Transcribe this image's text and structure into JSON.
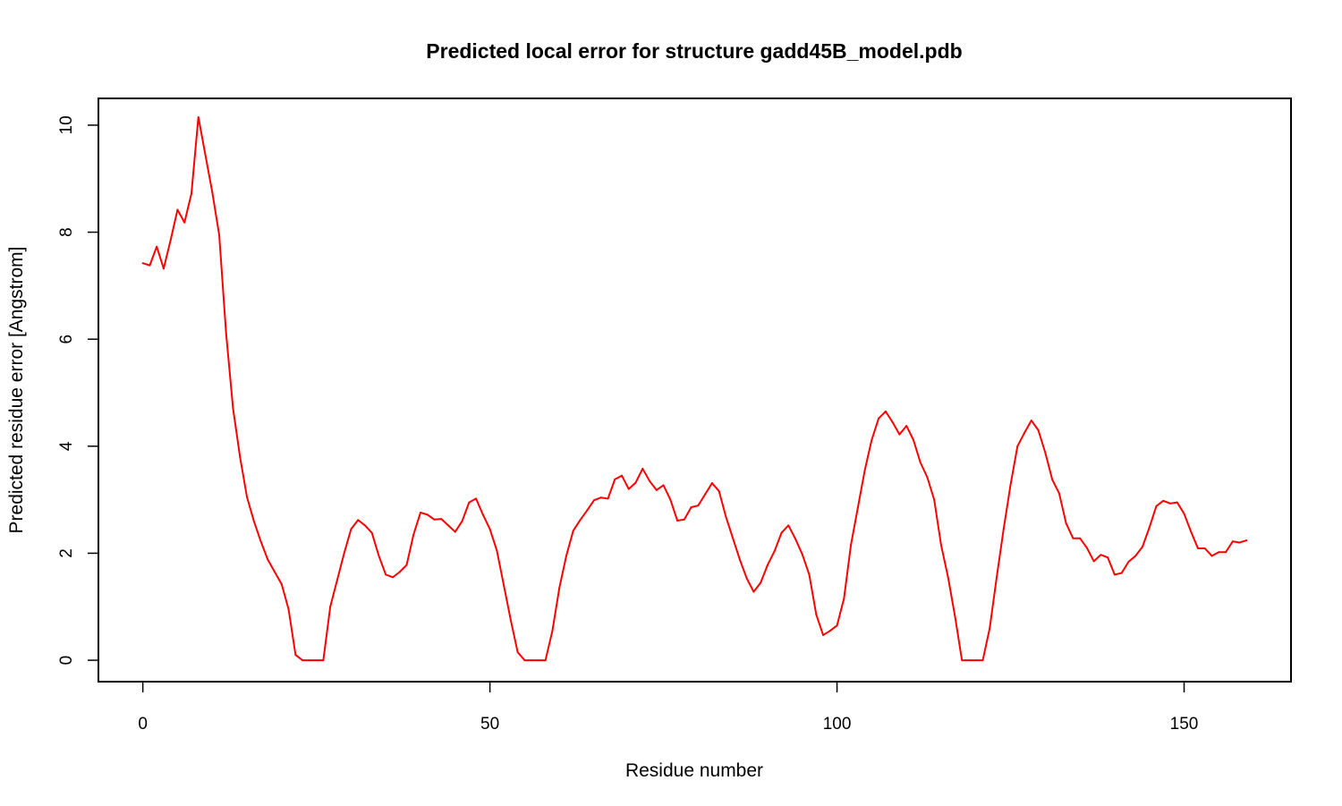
{
  "chart_data": {
    "type": "line",
    "title": "Predicted local error for structure gadd45B_model.pdb",
    "xlabel": "Residue number",
    "ylabel": "Predicted residue error [Angstrom]",
    "xlim": [
      -6.4,
      165.4
    ],
    "ylim": [
      -0.4,
      10.5
    ],
    "x_ticks": [
      0,
      50,
      100,
      150
    ],
    "x_tick_labels": [
      "0",
      "50",
      "100",
      "150"
    ],
    "y_ticks": [
      0,
      2,
      4,
      6,
      8,
      10
    ],
    "y_tick_labels": [
      "0",
      "2",
      "4",
      "6",
      "8",
      "10"
    ],
    "grid": false,
    "series": [
      {
        "name": "Predicted residue error",
        "color": "#ff0000",
        "x": [
          0,
          1,
          2,
          3,
          4,
          5,
          6,
          7,
          8,
          9,
          10,
          11,
          12,
          13,
          14,
          15,
          16,
          17,
          18,
          19,
          20,
          21,
          22,
          23,
          24,
          25,
          26,
          27,
          28,
          29,
          30,
          31,
          32,
          33,
          34,
          35,
          36,
          37,
          38,
          39,
          40,
          41,
          42,
          43,
          44,
          45,
          46,
          47,
          48,
          49,
          50,
          51,
          52,
          53,
          54,
          55,
          56,
          57,
          58,
          59,
          60,
          61,
          62,
          63,
          64,
          65,
          66,
          67,
          68,
          69,
          70,
          71,
          72,
          73,
          74,
          75,
          76,
          77,
          78,
          79,
          80,
          81,
          82,
          83,
          84,
          85,
          86,
          87,
          88,
          89,
          90,
          91,
          92,
          93,
          94,
          95,
          96,
          97,
          98,
          99,
          100,
          101,
          102,
          103,
          104,
          105,
          106,
          107,
          108,
          109,
          110,
          111,
          112,
          113,
          114,
          115,
          116,
          117,
          118,
          119,
          120,
          121,
          122,
          123,
          124,
          125,
          126,
          127,
          128,
          129,
          130,
          131,
          132,
          133,
          134,
          135,
          136,
          137,
          138,
          139,
          140,
          141,
          142,
          143,
          144,
          145,
          146,
          147,
          148,
          149,
          150,
          151,
          152,
          153,
          154,
          155,
          156,
          157,
          158,
          159
        ],
        "y": [
          7.42,
          7.38,
          7.73,
          7.32,
          7.85,
          8.42,
          8.18,
          8.72,
          10.15,
          9.45,
          8.75,
          7.95,
          6.1,
          4.7,
          3.8,
          3.05,
          2.6,
          2.22,
          1.88,
          1.65,
          1.42,
          0.95,
          0.1,
          0.0,
          0.0,
          0.0,
          0.0,
          1.0,
          1.5,
          2.0,
          2.45,
          2.62,
          2.52,
          2.38,
          1.95,
          1.6,
          1.55,
          1.65,
          1.78,
          2.35,
          2.76,
          2.72,
          2.63,
          2.64,
          2.52,
          2.4,
          2.6,
          2.95,
          3.02,
          2.72,
          2.45,
          2.05,
          1.4,
          0.75,
          0.15,
          0.0,
          0.0,
          0.0,
          0.0,
          0.55,
          1.35,
          1.95,
          2.42,
          2.62,
          2.8,
          2.99,
          3.04,
          3.02,
          3.38,
          3.45,
          3.2,
          3.32,
          3.58,
          3.35,
          3.18,
          3.27,
          3.0,
          2.61,
          2.63,
          2.86,
          2.89,
          3.1,
          3.31,
          3.16,
          2.68,
          2.28,
          1.88,
          1.53,
          1.28,
          1.45,
          1.78,
          2.04,
          2.38,
          2.52,
          2.27,
          1.98,
          1.6,
          0.86,
          0.47,
          0.55,
          0.65,
          1.15,
          2.15,
          2.85,
          3.55,
          4.12,
          4.52,
          4.65,
          4.45,
          4.22,
          4.38,
          4.12,
          3.7,
          3.42,
          3.0,
          2.15,
          1.55,
          0.82,
          0.0,
          0.0,
          0.0,
          0.0,
          0.6,
          1.55,
          2.45,
          3.28,
          4.0,
          4.25,
          4.48,
          4.3,
          3.88,
          3.38,
          3.12,
          2.56,
          2.28,
          2.28,
          2.1,
          1.85,
          1.97,
          1.92,
          1.6,
          1.63,
          1.84,
          1.95,
          2.12,
          2.48,
          2.88,
          2.98,
          2.93,
          2.95,
          2.74,
          2.4,
          2.09,
          2.09,
          1.95,
          2.02,
          2.02,
          2.22,
          2.2,
          2.24
        ]
      }
    ]
  }
}
